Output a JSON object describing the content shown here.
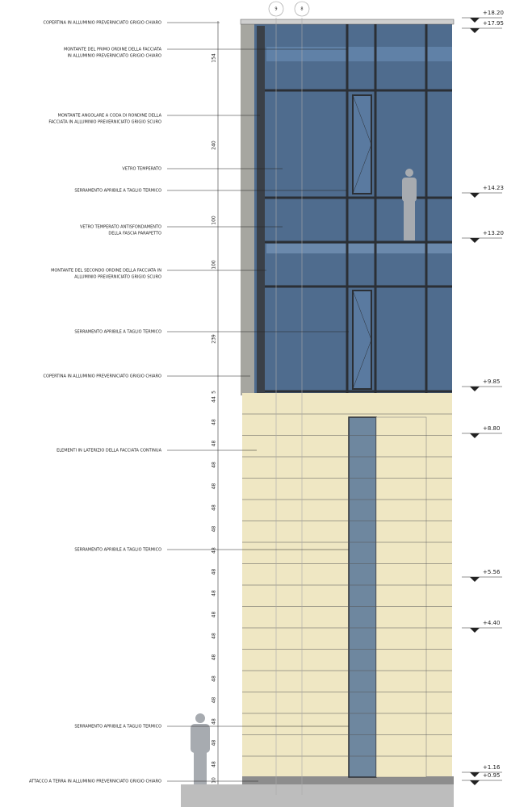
{
  "grid_bubbles": [
    "9",
    "8"
  ],
  "annotations": [
    {
      "lines": [
        "COPERTINA IN ALLUMINIO PREVERNICIATO GRIGIO CHIARO"
      ]
    },
    {
      "lines": [
        "MONTANTE DEL PRIMO ORDINE DELLA FACCIATA",
        "IN ALLUMINIO PREVERNICIATO GRIGIO CHIARO"
      ]
    },
    {
      "lines": [
        "MONTANTE ANGOLARE A CODA DI RONDINE DELLA",
        "FACCIATA IN ALLUMINIO PREVERNICIATO GRIGIO SCURO"
      ]
    },
    {
      "lines": [
        "VETRO TEMPERATO"
      ]
    },
    {
      "lines": [
        "SERRAMENTO APRIBILE A TAGLIO TERMICO"
      ]
    },
    {
      "lines": [
        "VETRO TEMPERATO ANTISFONDAMENTO",
        "DELLA FASCIA PARAPETTO"
      ]
    },
    {
      "lines": [
        "MONTANTE DEL SECONDO ORDINE DELLA FACCIATA IN",
        "ALLUMINIO PREVERNICIATO GRIGIO SCURO"
      ]
    },
    {
      "lines": [
        "SERRAMENTO APRIBILE A TAGLIO TERMICO"
      ]
    },
    {
      "lines": [
        "COPERTINA IN ALLUMINIO PREVERNICIATO GRIGIO CHIARO"
      ]
    },
    {
      "lines": [
        "ELEMENTI IN LATERIZIO DELLA FACCIATA CONTINUA"
      ]
    },
    {
      "lines": [
        "SERRAMENTO APRIBILE A TAGLIO TERMICO"
      ]
    },
    {
      "lines": [
        "SERRAMENTO APRIBILE A TAGLIO TERMICO"
      ]
    },
    {
      "lines": [
        "ATTACCO A TERRA IN ALLUMINIO PREVERNICIATO GRIGIO CHIARO"
      ]
    }
  ],
  "dimensions": [
    "154",
    "240",
    "100",
    "100",
    "239",
    "5",
    "44",
    "48",
    "48",
    "48",
    "48",
    "48",
    "48",
    "48",
    "48",
    "48",
    "48",
    "48",
    "48",
    "48",
    "48",
    "48",
    "48",
    "48",
    "10"
  ],
  "levels": [
    "+18.20",
    "+17.95",
    "+14.23",
    "+13.20",
    "+9.85",
    "+8.80",
    "+5.56",
    "+4.40",
    "+1.16",
    "+0.95"
  ]
}
